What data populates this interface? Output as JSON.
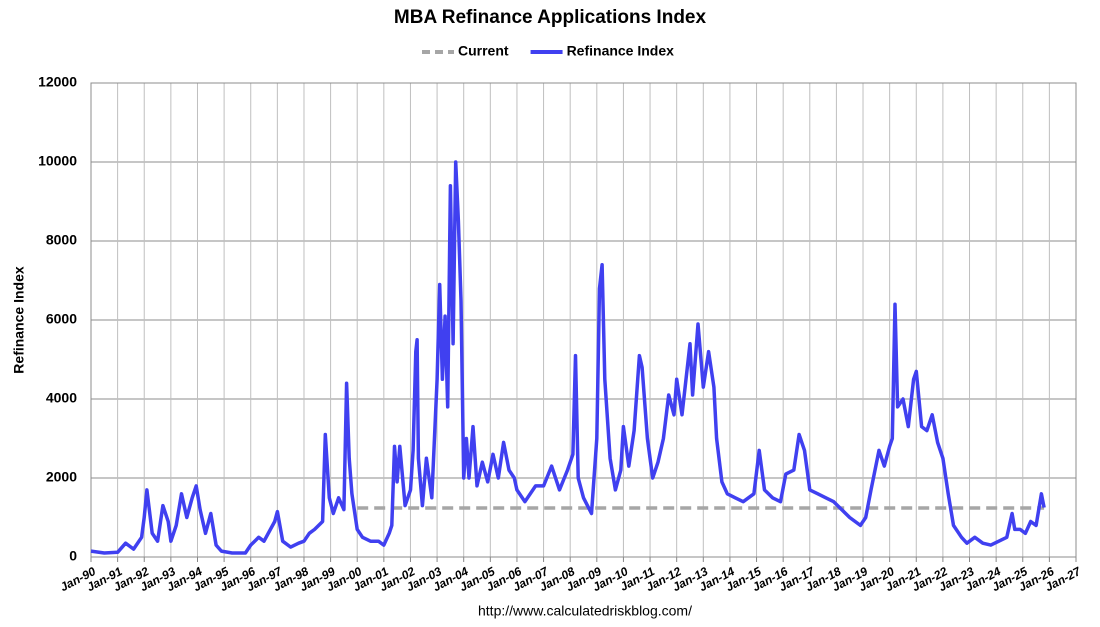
{
  "chart_data": {
    "type": "line",
    "title": "MBA Refinance Applications Index",
    "y_label": "Refinance Index",
    "source": "http://www.calculatedriskblog.com/",
    "legend": "top",
    "grid": true,
    "xlim": [
      1990,
      2027
    ],
    "ylim": [
      0,
      12000
    ],
    "yticks": [
      0,
      2000,
      4000,
      6000,
      8000,
      10000,
      12000
    ],
    "xticks": [
      {
        "value": 1990,
        "label": "Jan-90"
      },
      {
        "value": 1991,
        "label": "Jan-91"
      },
      {
        "value": 1992,
        "label": "Jan-92"
      },
      {
        "value": 1993,
        "label": "Jan-93"
      },
      {
        "value": 1994,
        "label": "Jan-94"
      },
      {
        "value": 1995,
        "label": "Jan-95"
      },
      {
        "value": 1996,
        "label": "Jan-96"
      },
      {
        "value": 1997,
        "label": "Jan-97"
      },
      {
        "value": 1998,
        "label": "Jan-98"
      },
      {
        "value": 1999,
        "label": "Jan-99"
      },
      {
        "value": 2000,
        "label": "Jan-00"
      },
      {
        "value": 2001,
        "label": "Jan-01"
      },
      {
        "value": 2002,
        "label": "Jan-02"
      },
      {
        "value": 2003,
        "label": "Jan-03"
      },
      {
        "value": 2004,
        "label": "Jan-04"
      },
      {
        "value": 2005,
        "label": "Jan-05"
      },
      {
        "value": 2006,
        "label": "Jan-06"
      },
      {
        "value": 2007,
        "label": "Jan-07"
      },
      {
        "value": 2008,
        "label": "Jan-08"
      },
      {
        "value": 2009,
        "label": "Jan-09"
      },
      {
        "value": 2010,
        "label": "Jan-10"
      },
      {
        "value": 2011,
        "label": "Jan-11"
      },
      {
        "value": 2012,
        "label": "Jan-12"
      },
      {
        "value": 2013,
        "label": "Jan-13"
      },
      {
        "value": 2014,
        "label": "Jan-14"
      },
      {
        "value": 2015,
        "label": "Jan-15"
      },
      {
        "value": 2016,
        "label": "Jan-16"
      },
      {
        "value": 2017,
        "label": "Jan-17"
      },
      {
        "value": 2018,
        "label": "Jan-18"
      },
      {
        "value": 2019,
        "label": "Jan-19"
      },
      {
        "value": 2020,
        "label": "Jan-20"
      },
      {
        "value": 2021,
        "label": "Jan-21"
      },
      {
        "value": 2022,
        "label": "Jan-22"
      },
      {
        "value": 2023,
        "label": "Jan-23"
      },
      {
        "value": 2024,
        "label": "Jan-24"
      },
      {
        "value": 2025,
        "label": "Jan-25"
      },
      {
        "value": 2026,
        "label": "Jan-26"
      },
      {
        "value": 2027,
        "label": "Jan-27"
      }
    ],
    "series": [
      {
        "name": "Current",
        "color": "#a6a6a6",
        "dashed": true,
        "x": [
          2000,
          2025.8
        ],
        "values": [
          1240,
          1240
        ]
      },
      {
        "name": "Refinance Index",
        "color": "#4040f0",
        "dashed": false,
        "x": [
          1990.0,
          1990.5,
          1991.0,
          1991.3,
          1991.6,
          1991.9,
          1992.0,
          1992.1,
          1992.3,
          1992.5,
          1992.7,
          1992.9,
          1993.0,
          1993.2,
          1993.4,
          1993.6,
          1993.8,
          1993.95,
          1994.1,
          1994.3,
          1994.5,
          1994.7,
          1994.9,
          1995.3,
          1995.8,
          1996.0,
          1996.3,
          1996.5,
          1996.9,
          1997.0,
          1997.2,
          1997.5,
          1997.8,
          1998.0,
          1998.2,
          1998.4,
          1998.7,
          1998.8,
          1998.95,
          1999.1,
          1999.3,
          1999.5,
          1999.6,
          1999.7,
          1999.8,
          2000.0,
          2000.2,
          2000.5,
          2000.8,
          2001.0,
          2001.2,
          2001.3,
          2001.4,
          2001.5,
          2001.6,
          2001.8,
          2002.0,
          2002.1,
          2002.2,
          2002.25,
          2002.3,
          2002.45,
          2002.6,
          2002.8,
          2003.0,
          2003.1,
          2003.2,
          2003.3,
          2003.4,
          2003.5,
          2003.6,
          2003.7,
          2003.8,
          2003.9,
          2004.0,
          2004.1,
          2004.2,
          2004.35,
          2004.5,
          2004.7,
          2004.9,
          2005.1,
          2005.3,
          2005.5,
          2005.7,
          2005.9,
          2006.0,
          2006.3,
          2006.7,
          2007.0,
          2007.3,
          2007.6,
          2007.9,
          2008.1,
          2008.2,
          2008.3,
          2008.5,
          2008.8,
          2009.0,
          2009.1,
          2009.2,
          2009.3,
          2009.5,
          2009.7,
          2009.9,
          2010.0,
          2010.2,
          2010.4,
          2010.6,
          2010.7,
          2010.9,
          2011.1,
          2011.3,
          2011.5,
          2011.7,
          2011.9,
          2012.0,
          2012.2,
          2012.5,
          2012.6,
          2012.8,
          2013.0,
          2013.2,
          2013.4,
          2013.5,
          2013.7,
          2013.9,
          2014.2,
          2014.5,
          2014.9,
          2015.1,
          2015.3,
          2015.6,
          2015.9,
          2016.1,
          2016.4,
          2016.6,
          2016.8,
          2017.0,
          2017.3,
          2017.6,
          2017.9,
          2018.2,
          2018.5,
          2018.9,
          2019.1,
          2019.3,
          2019.6,
          2019.8,
          2020.0,
          2020.1,
          2020.2,
          2020.3,
          2020.5,
          2020.7,
          2020.9,
          2021.0,
          2021.2,
          2021.4,
          2021.6,
          2021.8,
          2022.0,
          2022.2,
          2022.4,
          2022.7,
          2022.9,
          2023.2,
          2023.5,
          2023.8,
          2024.1,
          2024.4,
          2024.6,
          2024.7,
          2024.9,
          2025.1,
          2025.3,
          2025.5,
          2025.7,
          2025.8
        ],
        "values": [
          150,
          100,
          120,
          350,
          200,
          500,
          1000,
          1700,
          600,
          400,
          1300,
          900,
          400,
          800,
          1600,
          1000,
          1500,
          1800,
          1200,
          600,
          1100,
          300,
          150,
          100,
          100,
          300,
          500,
          400,
          900,
          1150,
          400,
          250,
          350,
          400,
          600,
          700,
          900,
          3100,
          1500,
          1100,
          1500,
          1200,
          4400,
          2500,
          1600,
          700,
          500,
          400,
          400,
          300,
          600,
          800,
          2800,
          1900,
          2800,
          1300,
          1700,
          2700,
          5200,
          5500,
          2500,
          1300,
          2500,
          1500,
          4500,
          6900,
          4500,
          6100,
          3800,
          9400,
          5400,
          10000,
          8500,
          6500,
          2000,
          3000,
          2000,
          3300,
          1800,
          2400,
          1900,
          2600,
          2000,
          2900,
          2200,
          2000,
          1700,
          1400,
          1800,
          1800,
          2300,
          1700,
          2200,
          2600,
          5100,
          2000,
          1500,
          1100,
          3000,
          6800,
          7400,
          4500,
          2500,
          1700,
          2200,
          3300,
          2300,
          3200,
          5100,
          4800,
          3000,
          2000,
          2400,
          3000,
          4100,
          3600,
          4500,
          3600,
          5400,
          4100,
          5900,
          4300,
          5200,
          4300,
          3000,
          1900,
          1600,
          1500,
          1400,
          1600,
          2700,
          1700,
          1500,
          1400,
          2100,
          2200,
          3100,
          2700,
          1700,
          1600,
          1500,
          1400,
          1200,
          1000,
          800,
          1000,
          1700,
          2700,
          2300,
          2800,
          3000,
          6400,
          3800,
          4000,
          3300,
          4500,
          4700,
          3300,
          3200,
          3600,
          2900,
          2500,
          1600,
          800,
          500,
          350,
          500,
          350,
          300,
          400,
          500,
          1100,
          700,
          700,
          600,
          900,
          800,
          1600,
          1250
        ]
      }
    ]
  }
}
